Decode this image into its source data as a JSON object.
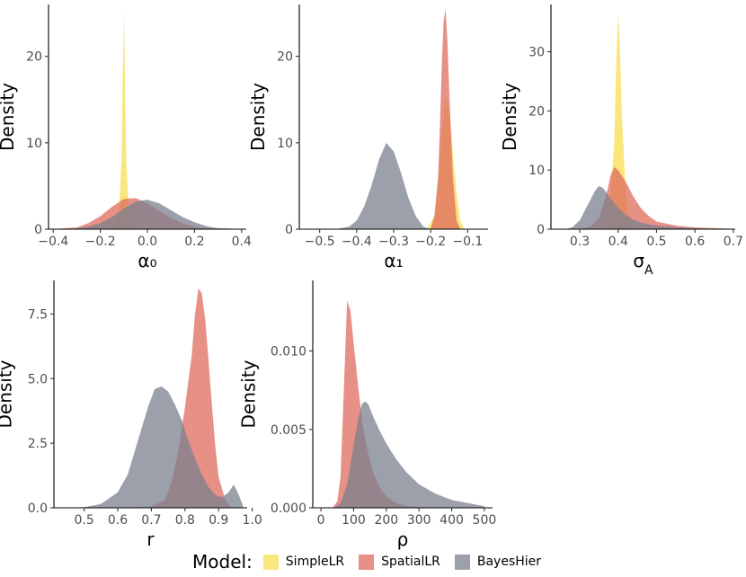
{
  "colors": {
    "SimpleLR": "#f7de52",
    "SpatialLR": "#de6b5e",
    "BayesHier": "#7b808d"
  },
  "legend": {
    "title": "Model:",
    "items": [
      {
        "name": "SimpleLR",
        "label": "SimpleLR",
        "color": "#f7de52"
      },
      {
        "name": "SpatialLR",
        "label": "SpatialLR",
        "color": "#de6b5e"
      },
      {
        "name": "BayesHier",
        "label": "BayesHier",
        "color": "#7b808d"
      }
    ]
  },
  "chart_data": [
    {
      "type": "area",
      "xlabel": "α₀",
      "ylabel": "Density",
      "xlim": [
        -0.42,
        0.42
      ],
      "ylim": [
        0,
        26
      ],
      "xticks": [
        -0.4,
        -0.2,
        0.0,
        0.2,
        0.4
      ],
      "xtick_labels": [
        "−0.4",
        "−0.2",
        "0.0",
        "0.2",
        "0.4"
      ],
      "yticks": [
        0,
        10,
        20
      ],
      "ytick_labels": [
        "0",
        "10",
        "20"
      ],
      "series": [
        {
          "name": "SimpleLR",
          "x": [
            -0.2,
            -0.14,
            -0.12,
            -0.11,
            -0.105,
            -0.1,
            -0.095,
            -0.09,
            -0.08,
            -0.06,
            0.0
          ],
          "y": [
            0,
            0.2,
            2.5,
            8,
            17,
            25.5,
            17,
            8,
            2.5,
            0.2,
            0
          ]
        },
        {
          "name": "SpatialLR",
          "x": [
            -0.4,
            -0.3,
            -0.25,
            -0.2,
            -0.15,
            -0.1,
            -0.05,
            0.0,
            0.05,
            0.1,
            0.15,
            0.2,
            0.25,
            0.3,
            0.4
          ],
          "y": [
            0.02,
            0.2,
            0.7,
            1.5,
            2.6,
            3.5,
            3.6,
            3.0,
            2.1,
            1.3,
            0.7,
            0.3,
            0.12,
            0.04,
            0
          ]
        },
        {
          "name": "BayesHier",
          "x": [
            -0.4,
            -0.3,
            -0.25,
            -0.2,
            -0.15,
            -0.1,
            -0.05,
            0.0,
            0.05,
            0.1,
            0.15,
            0.2,
            0.25,
            0.3,
            0.4
          ],
          "y": [
            0.02,
            0.1,
            0.3,
            0.7,
            1.4,
            2.4,
            3.2,
            3.4,
            3.0,
            2.2,
            1.4,
            0.8,
            0.35,
            0.12,
            0.02
          ]
        }
      ]
    },
    {
      "type": "area",
      "xlabel": "α₁",
      "ylabel": "Density",
      "xlim": [
        -0.555,
        -0.045
      ],
      "ylim": [
        0,
        26
      ],
      "xticks": [
        -0.5,
        -0.4,
        -0.3,
        -0.2,
        -0.1
      ],
      "xtick_labels": [
        "−0.5",
        "−0.4",
        "−0.3",
        "−0.2",
        "−0.1"
      ],
      "yticks": [
        0,
        10,
        20
      ],
      "ytick_labels": [
        "0",
        "10",
        "20"
      ],
      "series": [
        {
          "name": "BayesHier",
          "x": [
            -0.55,
            -0.45,
            -0.42,
            -0.4,
            -0.38,
            -0.36,
            -0.34,
            -0.32,
            -0.3,
            -0.28,
            -0.26,
            -0.24,
            -0.22,
            -0.2
          ],
          "y": [
            0,
            0.05,
            0.3,
            1.0,
            2.6,
            5.0,
            8.0,
            10.0,
            9.0,
            6.5,
            3.6,
            1.5,
            0.3,
            0
          ]
        },
        {
          "name": "SimpleLR",
          "x": [
            -0.21,
            -0.19,
            -0.18,
            -0.17,
            -0.16,
            -0.15,
            -0.14,
            -0.13,
            -0.12,
            -0.11
          ],
          "y": [
            0,
            1.5,
            5,
            11,
            15,
            14,
            9,
            4,
            1,
            0
          ]
        },
        {
          "name": "SpatialLR",
          "x": [
            -0.2,
            -0.19,
            -0.18,
            -0.175,
            -0.17,
            -0.165,
            -0.16,
            -0.155,
            -0.15,
            -0.14,
            -0.13,
            -0.12
          ],
          "y": [
            0,
            1.5,
            6,
            12,
            19,
            24,
            25.5,
            22,
            16,
            6,
            1,
            0
          ]
        }
      ]
    },
    {
      "type": "area",
      "xlabel": "σ_A",
      "ylabel": "Density",
      "xlim": [
        0.225,
        0.705
      ],
      "ylim": [
        0,
        38
      ],
      "xticks": [
        0.3,
        0.4,
        0.5,
        0.6,
        0.7
      ],
      "xtick_labels": [
        "0.3",
        "0.4",
        "0.5",
        "0.6",
        "0.7"
      ],
      "yticks": [
        0,
        10,
        20,
        30
      ],
      "ytick_labels": [
        "0",
        "10",
        "20",
        "30"
      ],
      "series": [
        {
          "name": "SimpleLR",
          "x": [
            0.36,
            0.37,
            0.38,
            0.39,
            0.395,
            0.4,
            0.405,
            0.41,
            0.42,
            0.43,
            0.44
          ],
          "y": [
            0,
            1,
            5,
            15,
            28,
            36.5,
            30,
            19,
            6,
            1,
            0
          ]
        },
        {
          "name": "SpatialLR",
          "x": [
            0.3,
            0.33,
            0.35,
            0.37,
            0.38,
            0.39,
            0.4,
            0.42,
            0.44,
            0.46,
            0.48,
            0.5,
            0.55,
            0.6,
            0.7
          ],
          "y": [
            0,
            0.5,
            2,
            6,
            9,
            10.5,
            10,
            8,
            5.5,
            3.5,
            2.2,
            1.3,
            0.6,
            0.3,
            0.05
          ]
        },
        {
          "name": "BayesHier",
          "x": [
            0.26,
            0.28,
            0.3,
            0.32,
            0.34,
            0.35,
            0.36,
            0.37,
            0.38,
            0.4,
            0.42,
            0.44,
            0.46,
            0.48,
            0.5,
            0.55,
            0.6,
            0.7
          ],
          "y": [
            0,
            0.3,
            1.5,
            4,
            6.5,
            7.3,
            7,
            6.2,
            5.2,
            3.6,
            2.4,
            1.6,
            1.1,
            0.8,
            0.6,
            0.35,
            0.15,
            0
          ]
        }
      ]
    },
    {
      "type": "area",
      "xlabel": "r",
      "ylabel": "Density",
      "xlim": [
        0.41,
        0.985
      ],
      "ylim": [
        0,
        8.8
      ],
      "xticks": [
        0.5,
        0.6,
        0.7,
        0.8,
        0.9,
        1.0
      ],
      "xtick_labels": [
        "0.5",
        "0.6",
        "0.7",
        "0.8",
        "0.9",
        "1.0"
      ],
      "yticks": [
        0,
        2.5,
        5,
        7.5
      ],
      "ytick_labels": [
        "0.0",
        "2.5",
        "5.0",
        "7.5"
      ],
      "series": [
        {
          "name": "SpatialLR",
          "x": [
            0.6,
            0.7,
            0.74,
            0.76,
            0.78,
            0.8,
            0.82,
            0.83,
            0.84,
            0.85,
            0.86,
            0.87,
            0.88,
            0.89,
            0.9,
            0.92,
            0.94
          ],
          "y": [
            0,
            0.05,
            0.3,
            1.0,
            2.2,
            3.9,
            5.9,
            7.5,
            8.5,
            8.3,
            7.3,
            5.7,
            4.0,
            2.4,
            1.2,
            0.3,
            0
          ]
        },
        {
          "name": "BayesHier",
          "x": [
            0.43,
            0.5,
            0.55,
            0.6,
            0.63,
            0.66,
            0.69,
            0.71,
            0.73,
            0.75,
            0.77,
            0.79,
            0.81,
            0.83,
            0.85,
            0.87,
            0.89,
            0.91,
            0.93,
            0.945,
            0.96,
            0.975
          ],
          "y": [
            0,
            0.02,
            0.15,
            0.6,
            1.3,
            2.6,
            3.9,
            4.6,
            4.7,
            4.5,
            4.0,
            3.4,
            2.6,
            1.9,
            1.3,
            0.8,
            0.5,
            0.4,
            0.6,
            0.9,
            0.5,
            0
          ]
        }
      ]
    },
    {
      "type": "area",
      "xlabel": "ρ",
      "ylabel": "Density",
      "xlim": [
        -25,
        525
      ],
      "ylim": [
        0,
        0.0145
      ],
      "xticks": [
        0,
        100,
        200,
        300,
        400,
        500
      ],
      "xtick_labels": [
        "0",
        "100",
        "200",
        "300",
        "400",
        "500"
      ],
      "yticks": [
        0,
        0.005,
        0.01
      ],
      "ytick_labels": [
        "0.000",
        "0.005",
        "0.010"
      ],
      "series": [
        {
          "name": "SpatialLR",
          "x": [
            35,
            50,
            60,
            70,
            80,
            90,
            100,
            110,
            120,
            130,
            145,
            160,
            180,
            200,
            230,
            260,
            300,
            400,
            500
          ],
          "y": [
            0,
            0.0004,
            0.002,
            0.0075,
            0.0132,
            0.0126,
            0.0105,
            0.0085,
            0.0066,
            0.005,
            0.0034,
            0.0022,
            0.0013,
            0.0007,
            0.0003,
            0.00012,
            4e-05,
            1e-05,
            0
          ]
        },
        {
          "name": "BayesHier",
          "x": [
            40,
            60,
            80,
            100,
            115,
            125,
            135,
            145,
            160,
            180,
            200,
            230,
            260,
            300,
            350,
            400,
            450,
            500
          ],
          "y": [
            0,
            0.0003,
            0.0015,
            0.004,
            0.0058,
            0.0066,
            0.0068,
            0.0066,
            0.0058,
            0.0049,
            0.0041,
            0.0031,
            0.0023,
            0.0015,
            0.0009,
            0.0005,
            0.0003,
            0.0001
          ]
        }
      ]
    }
  ]
}
